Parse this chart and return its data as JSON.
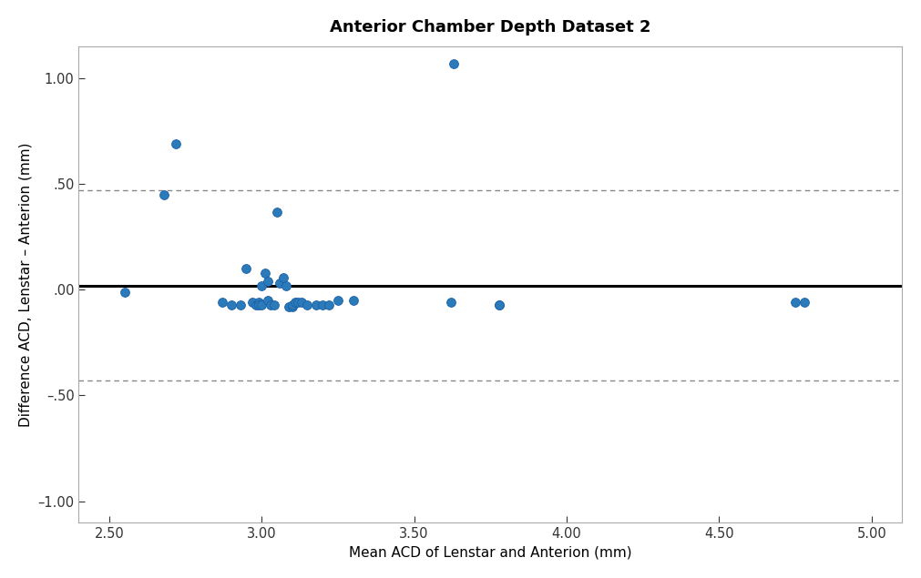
{
  "title": "Anterior Chamber Depth Dataset 2",
  "xlabel": "Mean ACD of Lenstar and Anterion (mm)",
  "ylabel": "Difference ACD, Lenstar – Anterion (mm)",
  "mean_diff": 0.02,
  "upper_loa": 0.47,
  "lower_loa": -0.43,
  "xlim": [
    2.4,
    5.1
  ],
  "ylim": [
    -1.1,
    1.15
  ],
  "x_ticks": [
    2.5,
    3.0,
    3.5,
    4.0,
    4.5,
    5.0
  ],
  "y_ticks": [
    -1.0,
    -0.5,
    0.0,
    0.5,
    1.0
  ],
  "y_tick_labels": [
    "–1.00",
    "–.50",
    ".00",
    ".50",
    "1.00"
  ],
  "x_tick_labels": [
    "2.50",
    "3.00",
    "3.50",
    "4.00",
    "4.50",
    "5.00"
  ],
  "scatter_x": [
    2.55,
    2.68,
    2.72,
    2.87,
    2.9,
    2.93,
    2.95,
    2.97,
    2.98,
    2.99,
    2.99,
    3.0,
    3.0,
    3.01,
    3.02,
    3.02,
    3.03,
    3.04,
    3.05,
    3.06,
    3.07,
    3.08,
    3.09,
    3.1,
    3.1,
    3.11,
    3.12,
    3.13,
    3.15,
    3.18,
    3.2,
    3.22,
    3.25,
    3.3,
    3.62,
    3.78,
    4.75,
    4.78,
    3.63,
    3.78
  ],
  "scatter_y": [
    -0.01,
    0.45,
    0.69,
    -0.06,
    -0.07,
    -0.07,
    0.1,
    -0.06,
    -0.07,
    -0.06,
    -0.07,
    -0.07,
    0.02,
    0.08,
    0.04,
    -0.05,
    -0.07,
    -0.07,
    0.37,
    0.03,
    0.06,
    0.02,
    -0.08,
    -0.08,
    -0.07,
    -0.06,
    -0.06,
    -0.06,
    -0.07,
    -0.07,
    -0.07,
    -0.07,
    -0.05,
    -0.05,
    -0.06,
    -0.07,
    -0.06,
    -0.06,
    1.07,
    -0.07
  ],
  "dot_color": "#2b7bba",
  "dot_edgecolor": "#1a5fa8",
  "mean_line_color": "#000000",
  "loa_line_color": "#888888",
  "spine_color": "#aaaaaa",
  "background_color": "#ffffff",
  "title_fontsize": 13,
  "label_fontsize": 11,
  "tick_fontsize": 10.5
}
